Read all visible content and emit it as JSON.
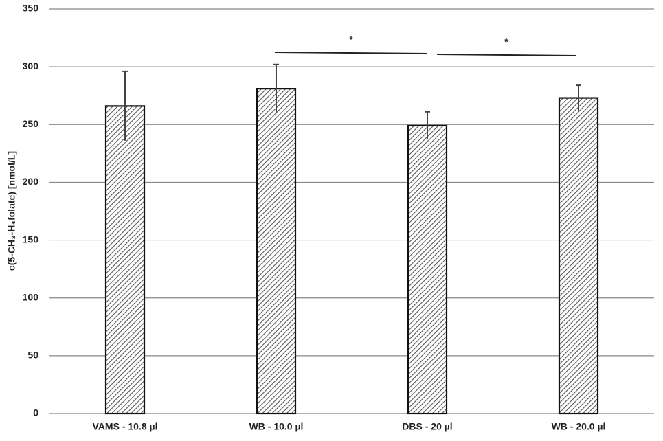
{
  "chart_data": {
    "type": "bar",
    "y_label": "c(5-CH₃-H₄folate) [nmol/L]",
    "categories": [
      "VAMS - 10.8 µl",
      "WB - 10.0 µl",
      "DBS - 20 µl",
      "WB - 20.0 µl"
    ],
    "values": [
      266,
      281,
      249,
      273
    ],
    "errors": [
      30,
      21,
      12,
      11
    ],
    "color": "#555555",
    "ylim": [
      0,
      350
    ],
    "yticks": [
      0,
      50,
      100,
      150,
      200,
      250,
      300,
      350
    ],
    "grid": true,
    "annotations": [
      "*",
      "*"
    ]
  }
}
